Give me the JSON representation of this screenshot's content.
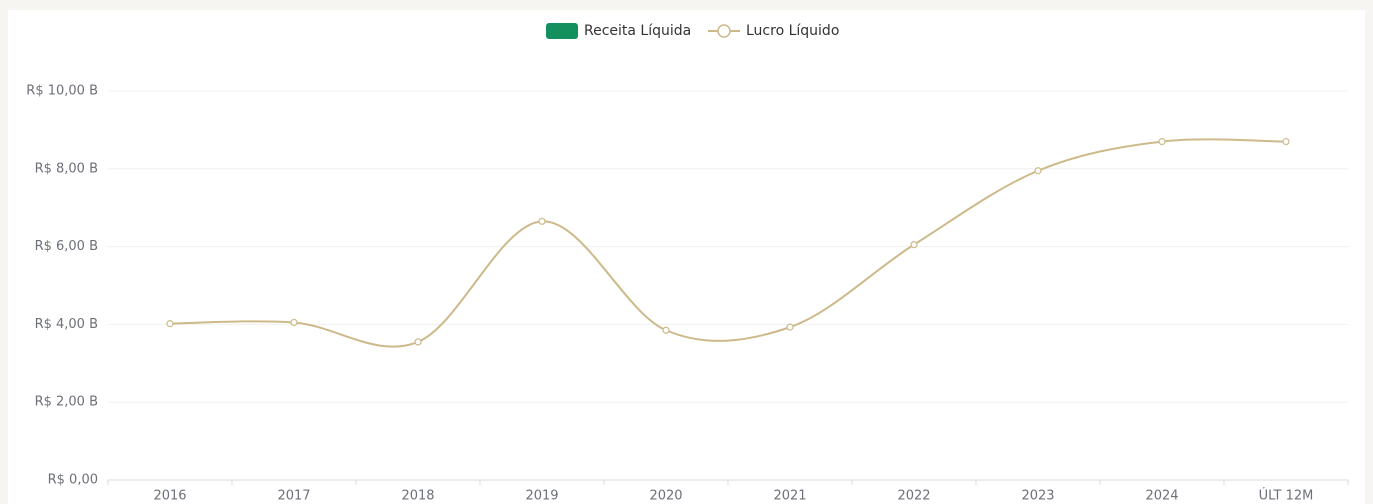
{
  "chart_data": {
    "type": "line",
    "categories": [
      "2016",
      "2017",
      "2018",
      "2019",
      "2020",
      "2021",
      "2022",
      "2023",
      "2024",
      "ÚLT 12M"
    ],
    "series": [
      {
        "name": "Receita Líquida",
        "type": "bar",
        "color": "#14905f",
        "values": [
          null,
          null,
          null,
          null,
          null,
          null,
          null,
          null,
          null,
          null
        ]
      },
      {
        "name": "Lucro Líquido",
        "type": "line",
        "color": "#cdb98a",
        "values": [
          4.02,
          4.05,
          3.55,
          6.65,
          3.85,
          3.93,
          6.05,
          7.95,
          8.7,
          8.7
        ]
      }
    ],
    "ylim": [
      0,
      10
    ],
    "yticks": [
      {
        "value": 0,
        "label": "R$ 0,00"
      },
      {
        "value": 2,
        "label": "R$  2,00 B"
      },
      {
        "value": 4,
        "label": "R$  4,00 B"
      },
      {
        "value": 6,
        "label": "R$  6,00 B"
      },
      {
        "value": 8,
        "label": "R$  8,00 B"
      },
      {
        "value": 10,
        "label": "R$  10,00 B"
      }
    ],
    "grid": true,
    "smooth": true
  }
}
